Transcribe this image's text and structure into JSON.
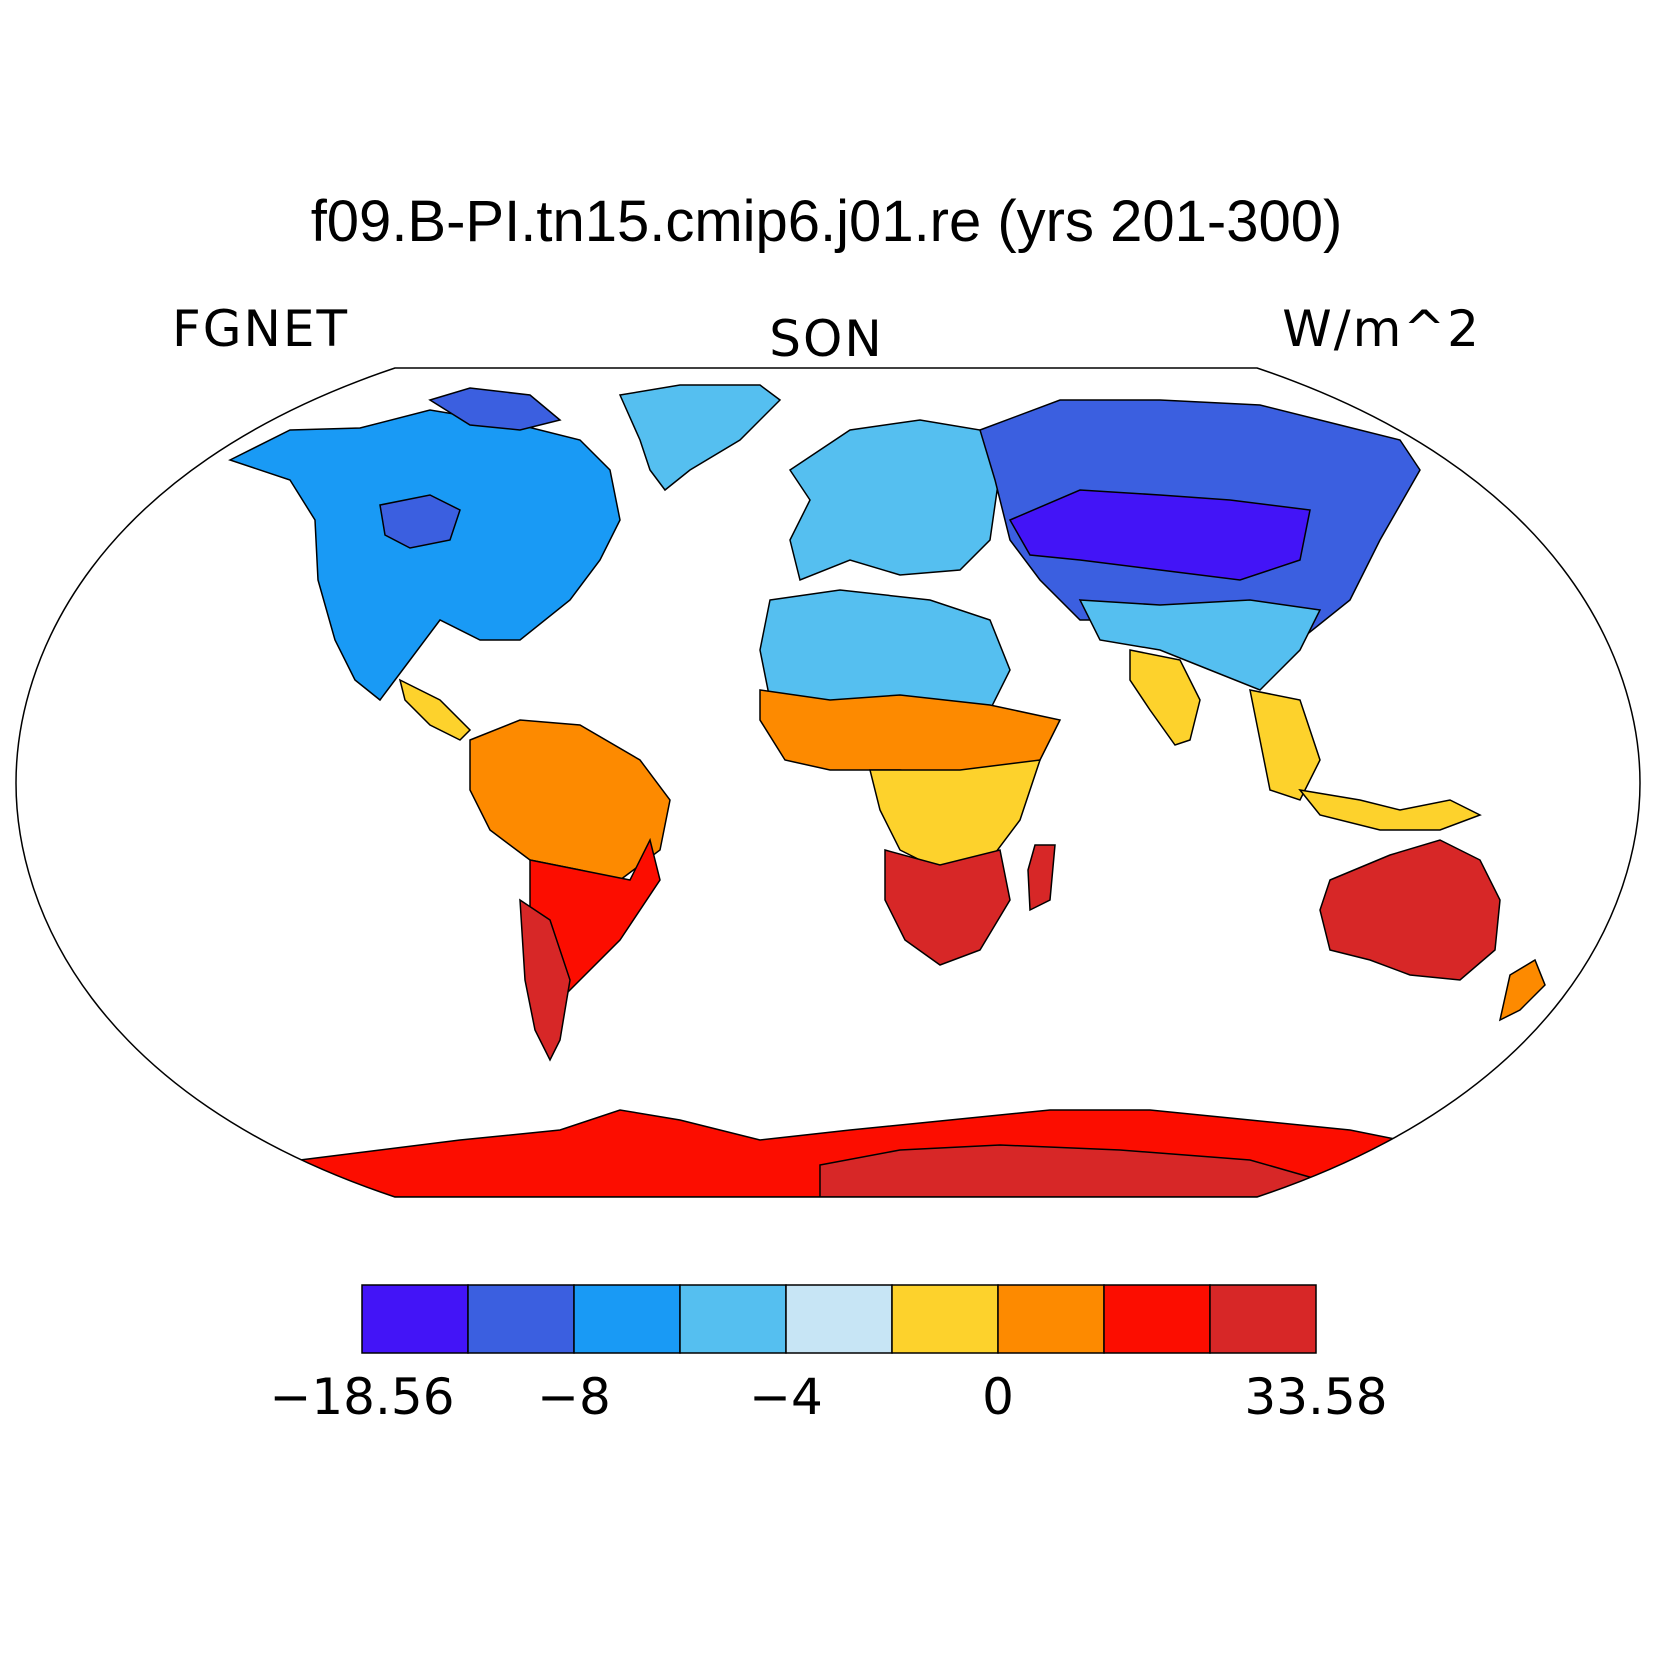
{
  "title": "f09.B-PI.tn15.cmip6.j01.re (yrs 201-300)",
  "subtitle_left": "FGNET",
  "subtitle_center": "SON",
  "subtitle_right": "W/m^2",
  "colors": {
    "ocean": "#ffffff",
    "coastline": "#000000",
    "palette": [
      "#4314f7",
      "#3b5fe0",
      "#199af5",
      "#55bff0",
      "#c7e5f5",
      "#fdd22c",
      "#fd8a00",
      "#fc0d00",
      "#d72727"
    ]
  },
  "colorbar": {
    "labels": [
      {
        "text": "−18.56",
        "boundary": 0
      },
      {
        "text": "−8",
        "boundary": 2
      },
      {
        "text": "−4",
        "boundary": 4
      },
      {
        "text": "0",
        "boundary": 6
      },
      {
        "text": "33.58",
        "boundary": 9
      }
    ]
  },
  "regions": [
    {
      "name": "north-america",
      "level": 2
    },
    {
      "name": "canada-north",
      "level": 1
    },
    {
      "name": "greenland",
      "level": 3
    },
    {
      "name": "europe",
      "level": 3
    },
    {
      "name": "siberia",
      "level": 1
    },
    {
      "name": "central-asia",
      "level": 0
    },
    {
      "name": "sahara",
      "level": 3
    },
    {
      "name": "sahel",
      "level": 6
    },
    {
      "name": "central-africa",
      "level": 5
    },
    {
      "name": "southern-africa",
      "level": 8
    },
    {
      "name": "amazon",
      "level": 6
    },
    {
      "name": "southern-south-america",
      "level": 7
    },
    {
      "name": "patagonia",
      "level": 8
    },
    {
      "name": "india",
      "level": 5
    },
    {
      "name": "southeast-asia",
      "level": 5
    },
    {
      "name": "australia",
      "level": 8
    },
    {
      "name": "antarctica",
      "level": 7
    }
  ]
}
